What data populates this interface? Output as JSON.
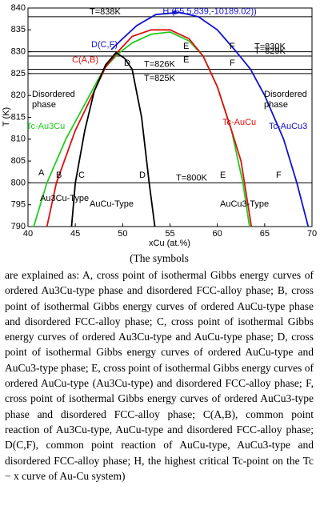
{
  "chart_data": {
    "type": "line",
    "xlabel": "xCu (at.%)",
    "ylabel": "T (K)",
    "xlim": [
      40,
      70
    ],
    "ylim": [
      790,
      840
    ],
    "xticks": [
      40,
      45,
      50,
      55,
      60,
      65,
      70
    ],
    "yticks": [
      790,
      795,
      800,
      805,
      810,
      815,
      820,
      825,
      830,
      835,
      840
    ],
    "hlines": [
      838,
      830,
      829,
      826,
      825,
      800
    ],
    "hline_labels": [
      "T=838K",
      "T=830K",
      "T=829K",
      "T=826K",
      "T=825K",
      "T=800K"
    ],
    "series": [
      {
        "color": "#22cc22",
        "x": [
          40.6,
          42,
          44,
          46,
          47.5,
          48.2,
          49.5,
          51,
          53,
          55,
          57,
          58.5,
          60,
          61.5,
          62.7,
          63.4
        ],
        "values": [
          790,
          800,
          810,
          818,
          824,
          826.5,
          829.5,
          832,
          834,
          834.5,
          832.5,
          829,
          822,
          812,
          800,
          790
        ]
      },
      {
        "color": "#dd1111",
        "x": [
          42,
          43,
          45,
          47,
          48.2,
          49.5,
          51,
          53,
          55,
          57,
          58.5,
          60,
          61.5,
          62.5,
          63.6
        ],
        "values": [
          790,
          800,
          812,
          821,
          826.5,
          830,
          833.5,
          835,
          835,
          833,
          829,
          822,
          812,
          805,
          790
        ]
      },
      {
        "color": "#1111cc",
        "x": [
          48.8,
          50,
          51.5,
          53.5,
          56,
          58,
          60,
          62,
          63.5,
          65,
          67,
          68.4,
          69.6
        ],
        "values": [
          830.5,
          833,
          836,
          838.5,
          839,
          838,
          835,
          830,
          826,
          820,
          810,
          800,
          790
        ]
      },
      {
        "color": "#000000",
        "x": [
          44.6,
          45,
          46,
          47,
          48.2,
          49.3,
          50.2,
          51,
          52,
          52.8,
          53.4
        ],
        "values": [
          790,
          800,
          812,
          821,
          827,
          829.8,
          828.5,
          826,
          815,
          800,
          790
        ]
      }
    ],
    "points": [
      {
        "x": 55.5,
        "y": 839,
        "label": "H:(55.5,839,-10189.02))",
        "color": "#1111cc"
      }
    ],
    "annotations": [
      "D(C,F)",
      "E",
      "F",
      "C(A,B)",
      "D",
      "E",
      "F",
      "Disordered phase",
      "Disordered phase",
      "Tc-Au3Cu",
      "Tc-AuCu",
      "Tc-AuCu3",
      "A",
      "B",
      "C",
      "D",
      "E",
      "F",
      "Au3Cu-Type",
      "AuCu-Type",
      "AuCu3-Type"
    ]
  },
  "caption": {
    "lead": "(The symbols",
    "text": "are explained as: A, cross point of isothermal Gibbs energy curves of ordered Au3Cu-type phase and disordered FCC-alloy phase; B, cross point of isothermal Gibbs energy curves of ordered AuCu-type phase and disordered FCC-alloy phase; C, cross point of isothermal Gibbs energy curves of ordered Au3Cu-type and AuCu-type phase; D, cross point of isothermal Gibbs energy curves of ordered AuCu-type and AuCu3-type phase; E, cross point of isothermal Gibbs energy curves of ordered AuCu-type (Au3Cu-type) and disordered FCC-alloy phase; F, cross point of isothermal Gibbs energy curves of ordered AuCu3-type phase and disordered FCC-alloy phase; C(A,B), common point reaction of Au3Cu-type, AuCu-type and disordered FCC-alloy phase; D(C,F), common point reaction of AuCu-type, AuCu3-type and disordered FCC-alloy phase; H, the highest critical Tc-point on the Tc − x curve of Au-Cu system)"
  }
}
